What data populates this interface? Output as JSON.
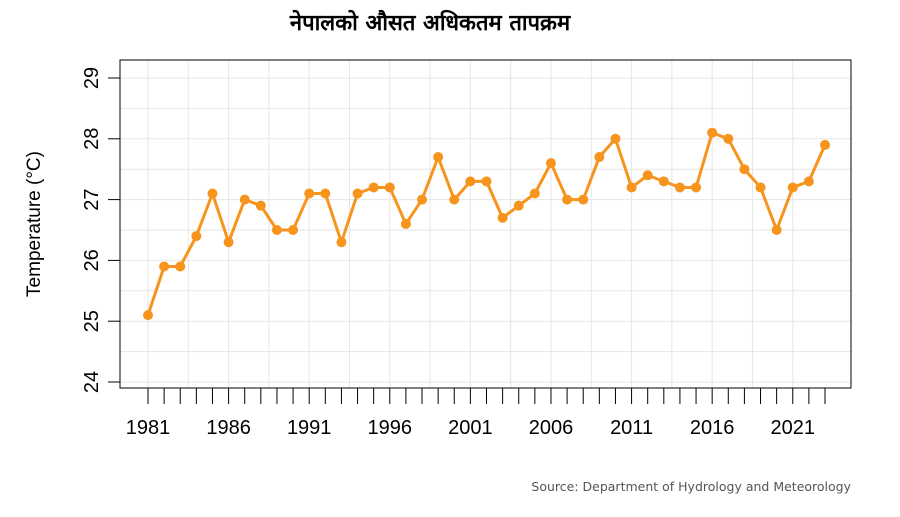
{
  "chart_data": {
    "type": "line",
    "title": "नेपालको औसत अधिकतम तापक्रम",
    "xlabel": "",
    "ylabel": "Temperature (°C)",
    "source": "Source: Department of Hydrology and Meteorology",
    "xlim": [
      1981,
      2023
    ],
    "ylim": [
      24,
      29
    ],
    "x_tick_labels": [
      1981,
      1986,
      1991,
      1996,
      2001,
      2006,
      2011,
      2016,
      2021
    ],
    "y_tick_labels": [
      24,
      25,
      26,
      27,
      28,
      29
    ],
    "grid": true,
    "line_color": "#f7941d",
    "x": [
      1981,
      1982,
      1983,
      1984,
      1985,
      1986,
      1987,
      1988,
      1989,
      1990,
      1991,
      1992,
      1993,
      1994,
      1995,
      1996,
      1997,
      1998,
      1999,
      2000,
      2001,
      2002,
      2003,
      2004,
      2005,
      2006,
      2007,
      2008,
      2009,
      2010,
      2011,
      2012,
      2013,
      2014,
      2015,
      2016,
      2017,
      2018,
      2019,
      2020,
      2021,
      2022,
      2023
    ],
    "series": [
      {
        "values": [
          25.1,
          25.9,
          25.9,
          26.4,
          27.1,
          26.3,
          27.0,
          26.9,
          26.5,
          26.5,
          27.1,
          27.1,
          26.3,
          27.1,
          27.2,
          27.2,
          26.6,
          27.0,
          27.7,
          27.0,
          27.3,
          27.3,
          26.7,
          26.9,
          27.1,
          27.6,
          27.0,
          27.0,
          27.7,
          28.0,
          27.2,
          27.4,
          27.3,
          27.2,
          27.2,
          28.1,
          28.0,
          27.5,
          27.2,
          26.5,
          27.2,
          27.3,
          27.9
        ]
      }
    ]
  }
}
